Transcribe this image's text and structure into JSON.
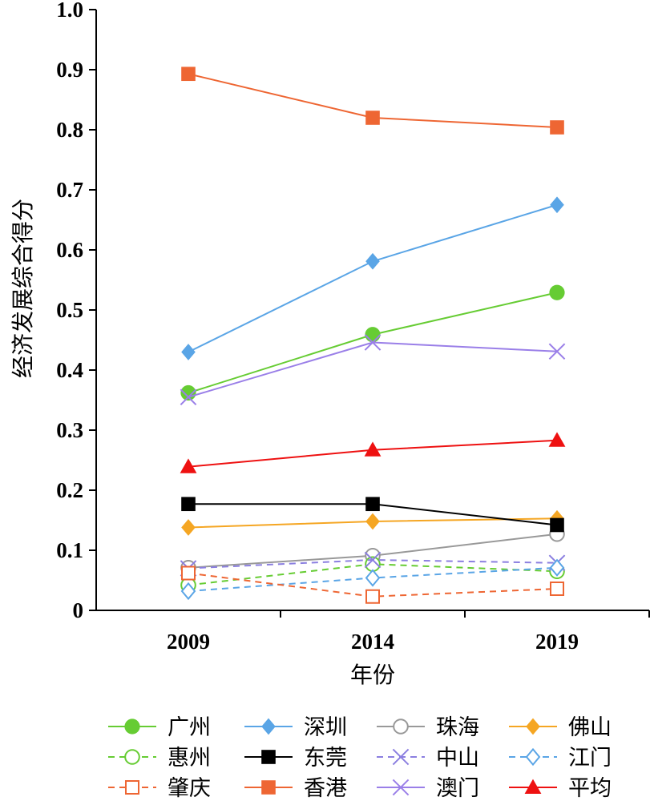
{
  "chart_data": {
    "type": "line",
    "title": "",
    "xlabel": "年份",
    "ylabel": "经济发展综合得分",
    "categories": [
      "2009",
      "2014",
      "2019"
    ],
    "ylim": [
      0,
      1.0
    ],
    "yticks": [
      "0",
      "0.1",
      "0.2",
      "0.3",
      "0.4",
      "0.5",
      "0.6",
      "0.7",
      "0.8",
      "0.9",
      "1.0"
    ],
    "grid": false,
    "legend_position": "bottom",
    "series": [
      {
        "name": "广州",
        "values": [
          0.362,
          0.459,
          0.529
        ],
        "color": "#66cc33",
        "marker": "circle-filled",
        "dash": false
      },
      {
        "name": "深圳",
        "values": [
          0.43,
          0.581,
          0.675
        ],
        "color": "#5aa5e6",
        "marker": "diamond-filled",
        "dash": false
      },
      {
        "name": "珠海",
        "values": [
          0.071,
          0.091,
          0.127
        ],
        "color": "#999999",
        "marker": "circle-open",
        "dash": false
      },
      {
        "name": "佛山",
        "values": [
          0.138,
          0.148,
          0.153
        ],
        "color": "#f5a623",
        "marker": "diamond-filled",
        "dash": false
      },
      {
        "name": "惠州",
        "values": [
          0.042,
          0.077,
          0.065
        ],
        "color": "#66cc33",
        "marker": "circle-open",
        "dash": true
      },
      {
        "name": "东莞",
        "values": [
          0.177,
          0.177,
          0.142
        ],
        "color": "#000000",
        "marker": "square-filled",
        "dash": false
      },
      {
        "name": "中山",
        "values": [
          0.07,
          0.084,
          0.079
        ],
        "color": "#8b7fe0",
        "marker": "x",
        "dash": true
      },
      {
        "name": "江门",
        "values": [
          0.032,
          0.054,
          0.071
        ],
        "color": "#5aa5e6",
        "marker": "diamond-open",
        "dash": true
      },
      {
        "name": "肇庆",
        "values": [
          0.062,
          0.023,
          0.036
        ],
        "color": "#ee6633",
        "marker": "square-open",
        "dash": true
      },
      {
        "name": "香港",
        "values": [
          0.893,
          0.82,
          0.804
        ],
        "color": "#ee6633",
        "marker": "square-filled",
        "dash": false
      },
      {
        "name": "澳门",
        "values": [
          0.355,
          0.446,
          0.431
        ],
        "color": "#9a7fe8",
        "marker": "x",
        "dash": false
      },
      {
        "name": "平均",
        "values": [
          0.239,
          0.267,
          0.283
        ],
        "color": "#ee1111",
        "marker": "triangle-filled",
        "dash": false
      }
    ]
  }
}
